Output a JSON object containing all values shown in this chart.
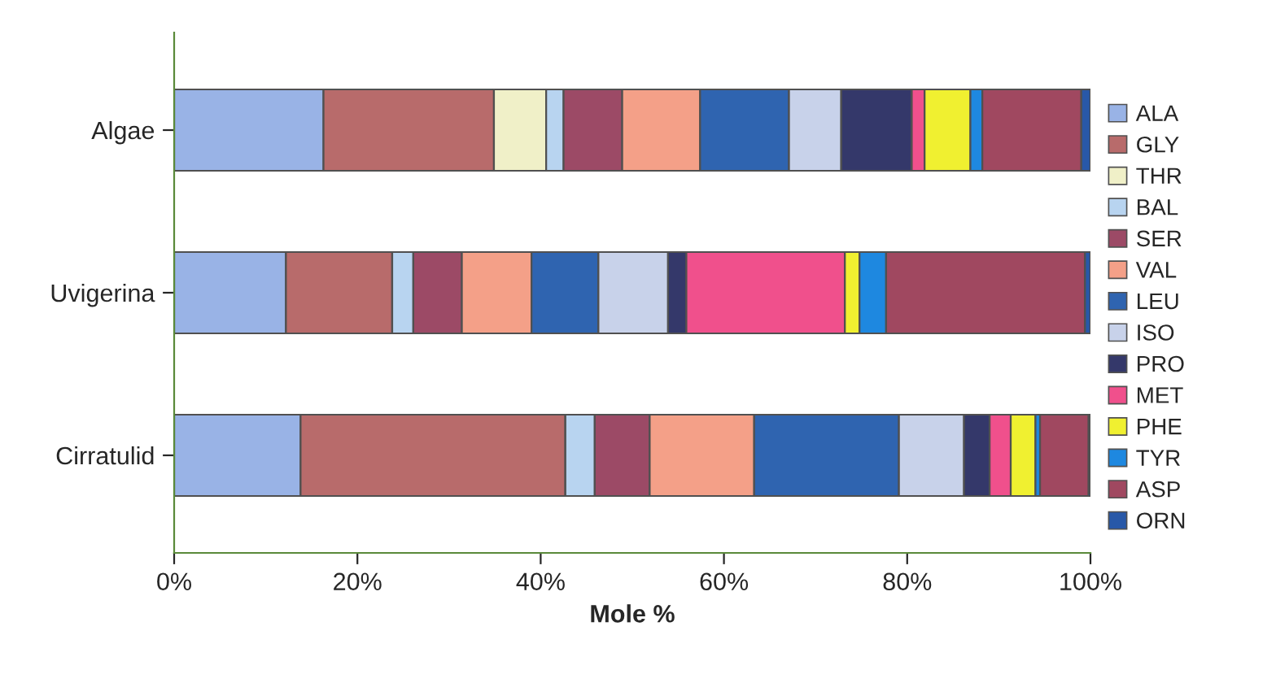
{
  "chart_data": {
    "type": "bar",
    "orientation": "horizontal",
    "stacked": true,
    "xlabel": "Mole %",
    "categories": [
      "Algae",
      "Uvigerina",
      "Cirratulid"
    ],
    "xlim": [
      0,
      100
    ],
    "xticks": [
      {
        "value": 0,
        "label": "0%"
      },
      {
        "value": 20,
        "label": "20%"
      },
      {
        "value": 40,
        "label": "40%"
      },
      {
        "value": 60,
        "label": "60%"
      },
      {
        "value": 80,
        "label": "80%"
      },
      {
        "value": 100,
        "label": "100%"
      }
    ],
    "grid": false,
    "legend": "right",
    "series": [
      {
        "name": "ALA",
        "color": "#99b3e6",
        "values": [
          16.3,
          12.2,
          13.8
        ]
      },
      {
        "name": "GLY",
        "color": "#b86b6b",
        "values": [
          18.6,
          11.6,
          28.9
        ]
      },
      {
        "name": "THR",
        "color": "#f0f0c8",
        "values": [
          5.7,
          0,
          0
        ]
      },
      {
        "name": "BAL",
        "color": "#b8d4f0",
        "values": [
          1.9,
          2.3,
          3.2
        ]
      },
      {
        "name": "SER",
        "color": "#9c4a66",
        "values": [
          6.4,
          5.3,
          6.0
        ]
      },
      {
        "name": "VAL",
        "color": "#f4a088",
        "values": [
          8.5,
          7.6,
          11.4
        ]
      },
      {
        "name": "LEU",
        "color": "#2f64b0",
        "values": [
          9.7,
          7.3,
          15.8
        ]
      },
      {
        "name": "ISO",
        "color": "#c8d2ea",
        "values": [
          5.7,
          7.6,
          7.1
        ]
      },
      {
        "name": "PRO",
        "color": "#34386a",
        "values": [
          7.7,
          2.0,
          2.8
        ]
      },
      {
        "name": "MET",
        "color": "#f0508c",
        "values": [
          1.4,
          17.3,
          2.3
        ]
      },
      {
        "name": "PHE",
        "color": "#f0f030",
        "values": [
          5.0,
          1.6,
          2.7
        ]
      },
      {
        "name": "TYR",
        "color": "#1e88e0",
        "values": [
          1.3,
          2.9,
          0.5
        ]
      },
      {
        "name": "ASP",
        "color": "#a04860",
        "values": [
          10.8,
          21.7,
          5.3
        ]
      },
      {
        "name": "ORN",
        "color": "#2858a8",
        "values": [
          1.0,
          0.6,
          0.2
        ]
      }
    ]
  }
}
